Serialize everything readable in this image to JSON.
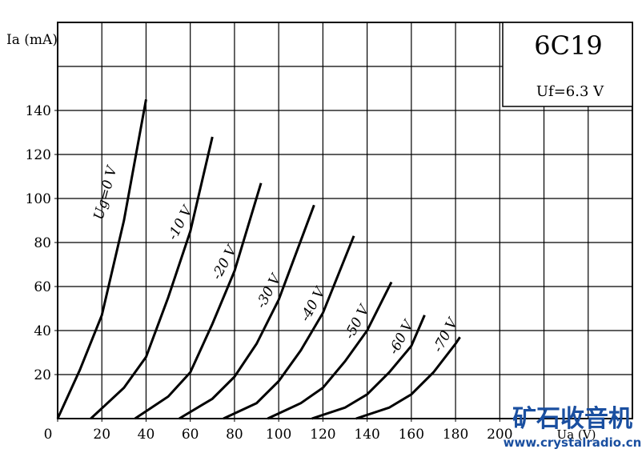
{
  "chart_data": {
    "type": "line",
    "title": "6C19",
    "subtitle": "Uf=6.3 V",
    "y_label": "Ia (mA)",
    "x_label": "Ua (V)",
    "xlim": [
      0,
      260
    ],
    "ylim": [
      0,
      180
    ],
    "xticks": [
      0,
      20,
      40,
      60,
      80,
      100,
      120,
      140,
      160,
      180,
      200
    ],
    "yticks": [
      20,
      40,
      60,
      80,
      100,
      120,
      140
    ],
    "grid_step_x": 20,
    "grid_step_y": 20,
    "grid": true,
    "color": "#000000",
    "series": [
      {
        "name": "Ug=0 V",
        "x": [
          0,
          10,
          20,
          30,
          40
        ],
        "values": [
          0,
          22,
          47,
          90,
          145
        ]
      },
      {
        "name": "-10 V",
        "x": [
          15,
          30,
          40,
          50,
          60,
          70
        ],
        "values": [
          0,
          14,
          28,
          55,
          85,
          128
        ]
      },
      {
        "name": "-20 V",
        "x": [
          35,
          50,
          60,
          70,
          80,
          92
        ],
        "values": [
          0,
          10,
          21,
          43,
          67,
          107
        ]
      },
      {
        "name": "-30 V",
        "x": [
          55,
          70,
          80,
          90,
          100,
          116
        ],
        "values": [
          0,
          9,
          19,
          34,
          54,
          97
        ]
      },
      {
        "name": "-40 V",
        "x": [
          75,
          90,
          100,
          110,
          120,
          134
        ],
        "values": [
          0,
          7,
          17,
          31,
          48,
          83
        ]
      },
      {
        "name": "-50 V",
        "x": [
          95,
          110,
          120,
          130,
          140,
          151
        ],
        "values": [
          0,
          7,
          14,
          26,
          40,
          62
        ]
      },
      {
        "name": "-60 V",
        "x": [
          115,
          130,
          140,
          150,
          160,
          166
        ],
        "values": [
          0,
          5,
          11,
          21,
          33,
          47
        ]
      },
      {
        "name": "-70 V",
        "x": [
          135,
          150,
          160,
          170,
          180,
          182
        ],
        "values": [
          0,
          5,
          11,
          21,
          34,
          37
        ]
      }
    ],
    "watermark": "矿石收音机",
    "watermark_url": "www.crystalradio.cn"
  }
}
